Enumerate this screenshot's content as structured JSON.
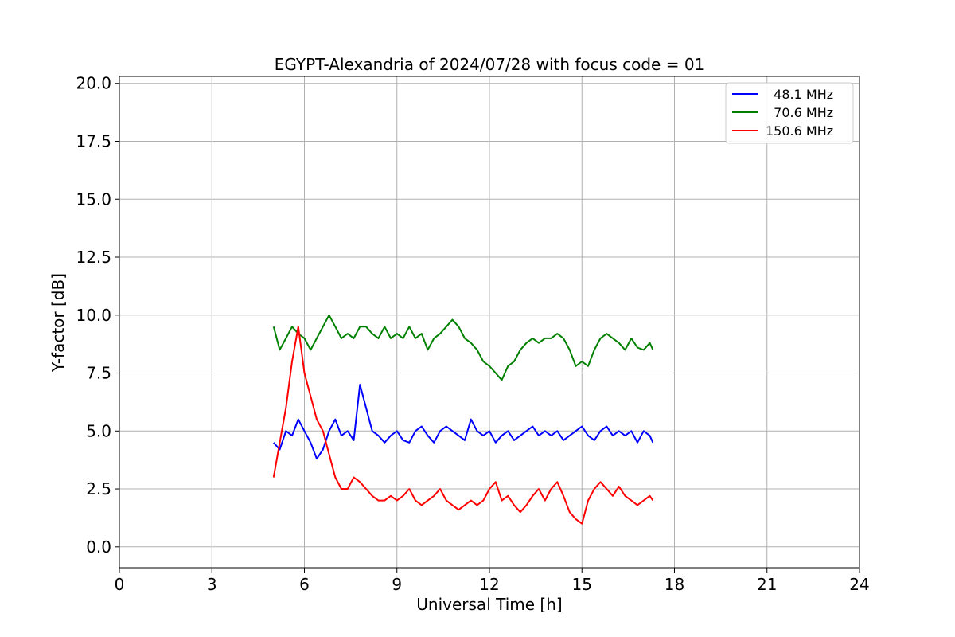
{
  "chart_data": {
    "type": "line",
    "title": "EGYPT-Alexandria of 2024/07/28 with focus code = 01",
    "xlabel": "Universal Time [h]",
    "ylabel": "Y-factor [dB]",
    "xlim": [
      0,
      24
    ],
    "ylim": [
      -0.9,
      20.3
    ],
    "xticks": [
      0,
      3,
      6,
      9,
      12,
      15,
      18,
      21,
      24
    ],
    "xtick_labels": [
      "0",
      "3",
      "6",
      "9",
      "12",
      "15",
      "18",
      "21",
      "24"
    ],
    "yticks": [
      0,
      2.5,
      5,
      7.5,
      10,
      12.5,
      15,
      17.5,
      20
    ],
    "ytick_labels": [
      "0.0",
      "2.5",
      "5.0",
      "7.5",
      "10.0",
      "12.5",
      "15.0",
      "17.5",
      "20.0"
    ],
    "grid": true,
    "legend_position": "top-right",
    "series": [
      {
        "name": "  48.1 MHz",
        "color": "#0000ff",
        "x": [
          5.0,
          5.2,
          5.4,
          5.6,
          5.8,
          6.0,
          6.2,
          6.4,
          6.6,
          6.8,
          7.0,
          7.2,
          7.4,
          7.6,
          7.8,
          8.0,
          8.2,
          8.4,
          8.6,
          8.8,
          9.0,
          9.2,
          9.4,
          9.6,
          9.8,
          10.0,
          10.2,
          10.4,
          10.6,
          10.8,
          11.0,
          11.2,
          11.4,
          11.6,
          11.8,
          12.0,
          12.2,
          12.4,
          12.6,
          12.8,
          13.0,
          13.2,
          13.4,
          13.6,
          13.8,
          14.0,
          14.2,
          14.4,
          14.6,
          14.8,
          15.0,
          15.2,
          15.4,
          15.6,
          15.8,
          16.0,
          16.2,
          16.4,
          16.6,
          16.8,
          17.0,
          17.2,
          17.3
        ],
        "values": [
          4.5,
          4.2,
          5.0,
          4.8,
          5.5,
          5.0,
          4.5,
          3.8,
          4.2,
          5.0,
          5.5,
          4.8,
          5.0,
          4.6,
          7.0,
          6.0,
          5.0,
          4.8,
          4.5,
          4.8,
          5.0,
          4.6,
          4.5,
          5.0,
          5.2,
          4.8,
          4.5,
          5.0,
          5.2,
          5.0,
          4.8,
          4.6,
          5.5,
          5.0,
          4.8,
          5.0,
          4.5,
          4.8,
          5.0,
          4.6,
          4.8,
          5.0,
          5.2,
          4.8,
          5.0,
          4.8,
          5.0,
          4.6,
          4.8,
          5.0,
          5.2,
          4.8,
          4.6,
          5.0,
          5.2,
          4.8,
          5.0,
          4.8,
          5.0,
          4.5,
          5.0,
          4.8,
          4.5
        ]
      },
      {
        "name": "  70.6 MHz",
        "color": "#008000",
        "x": [
          5.0,
          5.2,
          5.4,
          5.6,
          5.8,
          6.0,
          6.2,
          6.4,
          6.6,
          6.8,
          7.0,
          7.2,
          7.4,
          7.6,
          7.8,
          8.0,
          8.2,
          8.4,
          8.6,
          8.8,
          9.0,
          9.2,
          9.4,
          9.6,
          9.8,
          10.0,
          10.2,
          10.4,
          10.6,
          10.8,
          11.0,
          11.2,
          11.4,
          11.6,
          11.8,
          12.0,
          12.2,
          12.4,
          12.6,
          12.8,
          13.0,
          13.2,
          13.4,
          13.6,
          13.8,
          14.0,
          14.2,
          14.4,
          14.6,
          14.8,
          15.0,
          15.2,
          15.4,
          15.6,
          15.8,
          16.0,
          16.2,
          16.4,
          16.6,
          16.8,
          17.0,
          17.2,
          17.3
        ],
        "values": [
          9.5,
          8.5,
          9.0,
          9.5,
          9.2,
          9.0,
          8.5,
          9.0,
          9.5,
          10.0,
          9.5,
          9.0,
          9.2,
          9.0,
          9.5,
          9.5,
          9.2,
          9.0,
          9.5,
          9.0,
          9.2,
          9.0,
          9.5,
          9.0,
          9.2,
          8.5,
          9.0,
          9.2,
          9.5,
          9.8,
          9.5,
          9.0,
          8.8,
          8.5,
          8.0,
          7.8,
          7.5,
          7.2,
          7.8,
          8.0,
          8.5,
          8.8,
          9.0,
          8.8,
          9.0,
          9.0,
          9.2,
          9.0,
          8.5,
          7.8,
          8.0,
          7.8,
          8.5,
          9.0,
          9.2,
          9.0,
          8.8,
          8.5,
          9.0,
          8.6,
          8.5,
          8.8,
          8.5
        ]
      },
      {
        "name": "150.6 MHz",
        "color": "#ff0000",
        "x": [
          5.0,
          5.2,
          5.4,
          5.6,
          5.8,
          6.0,
          6.2,
          6.4,
          6.6,
          6.8,
          7.0,
          7.2,
          7.4,
          7.6,
          7.8,
          8.0,
          8.2,
          8.4,
          8.6,
          8.8,
          9.0,
          9.2,
          9.4,
          9.6,
          9.8,
          10.0,
          10.2,
          10.4,
          10.6,
          10.8,
          11.0,
          11.2,
          11.4,
          11.6,
          11.8,
          12.0,
          12.2,
          12.4,
          12.6,
          12.8,
          13.0,
          13.2,
          13.4,
          13.6,
          13.8,
          14.0,
          14.2,
          14.4,
          14.6,
          14.8,
          15.0,
          15.2,
          15.4,
          15.6,
          15.8,
          16.0,
          16.2,
          16.4,
          16.6,
          16.8,
          17.0,
          17.2,
          17.3
        ],
        "values": [
          3.0,
          4.5,
          6.0,
          8.0,
          9.5,
          7.5,
          6.5,
          5.5,
          5.0,
          4.0,
          3.0,
          2.5,
          2.5,
          3.0,
          2.8,
          2.5,
          2.2,
          2.0,
          2.0,
          2.2,
          2.0,
          2.2,
          2.5,
          2.0,
          1.8,
          2.0,
          2.2,
          2.5,
          2.0,
          1.8,
          1.6,
          1.8,
          2.0,
          1.8,
          2.0,
          2.5,
          2.8,
          2.0,
          2.2,
          1.8,
          1.5,
          1.8,
          2.2,
          2.5,
          2.0,
          2.5,
          2.8,
          2.2,
          1.5,
          1.2,
          1.0,
          2.0,
          2.5,
          2.8,
          2.5,
          2.2,
          2.6,
          2.2,
          2.0,
          1.8,
          2.0,
          2.2,
          2.0
        ]
      }
    ]
  }
}
